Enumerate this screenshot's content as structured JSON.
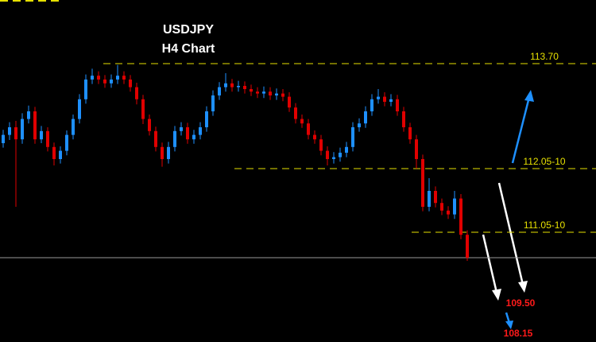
{
  "chart_data": {
    "type": "candlestick",
    "title": "USDJPY",
    "subtitle": "H4 Chart",
    "up_color": "#1e90ff",
    "down_color": "#e00000",
    "level_color": "#e6e000",
    "ylim": [
      109.325,
      114.7
    ],
    "levels": [
      {
        "value": 113.7,
        "label": "113.70"
      },
      {
        "value": 112.05,
        "label": "112.05-10"
      },
      {
        "value": 111.05,
        "label": "111.05-10"
      }
    ],
    "annotations": [
      "109.50",
      "108.15"
    ],
    "ohlc": [
      [
        112.45,
        112.66,
        112.38,
        112.58
      ],
      [
        112.58,
        112.78,
        112.5,
        112.7
      ],
      [
        112.7,
        112.8,
        111.45,
        112.51
      ],
      [
        112.51,
        112.92,
        112.44,
        112.83
      ],
      [
        112.83,
        113.04,
        112.76,
        112.95
      ],
      [
        112.95,
        113.02,
        112.44,
        112.51
      ],
      [
        112.51,
        112.72,
        112.45,
        112.64
      ],
      [
        112.64,
        112.7,
        112.32,
        112.39
      ],
      [
        112.39,
        112.46,
        112.1,
        112.2
      ],
      [
        112.2,
        112.4,
        112.13,
        112.33
      ],
      [
        112.33,
        112.65,
        112.26,
        112.58
      ],
      [
        112.58,
        112.9,
        112.51,
        112.83
      ],
      [
        112.83,
        113.22,
        112.76,
        113.14
      ],
      [
        113.14,
        113.53,
        113.07,
        113.45
      ],
      [
        113.45,
        113.62,
        113.38,
        113.51
      ],
      [
        113.51,
        113.58,
        113.38,
        113.45
      ],
      [
        113.45,
        113.52,
        113.32,
        113.39
      ],
      [
        113.39,
        113.53,
        113.32,
        113.45
      ],
      [
        113.45,
        113.68,
        113.38,
        113.51
      ],
      [
        113.51,
        113.58,
        113.38,
        113.45
      ],
      [
        113.45,
        113.52,
        113.26,
        113.33
      ],
      [
        113.33,
        113.4,
        113.06,
        113.14
      ],
      [
        113.14,
        113.21,
        112.75,
        112.83
      ],
      [
        112.83,
        112.9,
        112.57,
        112.64
      ],
      [
        112.64,
        112.71,
        112.32,
        112.39
      ],
      [
        112.39,
        112.46,
        112.08,
        112.2
      ],
      [
        112.2,
        112.47,
        112.13,
        112.39
      ],
      [
        112.39,
        112.72,
        112.32,
        112.64
      ],
      [
        112.64,
        112.78,
        112.57,
        112.7
      ],
      [
        112.7,
        112.77,
        112.44,
        112.51
      ],
      [
        112.51,
        112.66,
        112.44,
        112.58
      ],
      [
        112.58,
        112.78,
        112.51,
        112.7
      ],
      [
        112.7,
        113.03,
        112.63,
        112.95
      ],
      [
        112.95,
        113.28,
        112.88,
        113.2
      ],
      [
        113.2,
        113.41,
        113.13,
        113.33
      ],
      [
        113.33,
        113.55,
        113.26,
        113.39
      ],
      [
        113.39,
        113.46,
        113.26,
        113.33
      ],
      [
        113.33,
        113.43,
        113.26,
        113.35
      ],
      [
        113.35,
        113.42,
        113.23,
        113.3
      ],
      [
        113.3,
        113.37,
        113.19,
        113.26
      ],
      [
        113.26,
        113.33,
        113.16,
        113.23
      ],
      [
        113.23,
        113.34,
        113.16,
        113.26
      ],
      [
        113.26,
        113.33,
        113.13,
        113.2
      ],
      [
        113.2,
        113.31,
        113.13,
        113.23
      ],
      [
        113.23,
        113.3,
        113.11,
        113.18
      ],
      [
        113.18,
        113.25,
        112.94,
        113.01
      ],
      [
        113.01,
        113.08,
        112.76,
        112.83
      ],
      [
        112.83,
        112.9,
        112.69,
        112.76
      ],
      [
        112.76,
        112.83,
        112.51,
        112.58
      ],
      [
        112.58,
        112.65,
        112.44,
        112.51
      ],
      [
        112.51,
        112.58,
        112.26,
        112.33
      ],
      [
        112.33,
        112.4,
        112.1,
        112.2
      ],
      [
        112.2,
        112.31,
        112.13,
        112.23
      ],
      [
        112.23,
        112.38,
        112.16,
        112.3
      ],
      [
        112.3,
        112.47,
        112.23,
        112.39
      ],
      [
        112.39,
        112.78,
        112.32,
        112.7
      ],
      [
        112.7,
        112.84,
        112.63,
        112.76
      ],
      [
        112.76,
        113.03,
        112.69,
        112.95
      ],
      [
        112.95,
        113.22,
        112.88,
        113.14
      ],
      [
        113.14,
        113.3,
        113.07,
        113.18
      ],
      [
        113.18,
        113.25,
        113.03,
        113.1
      ],
      [
        113.1,
        113.22,
        113.03,
        113.14
      ],
      [
        113.14,
        113.21,
        112.88,
        112.95
      ],
      [
        112.95,
        113.02,
        112.63,
        112.7
      ],
      [
        112.7,
        112.77,
        112.44,
        112.51
      ],
      [
        112.51,
        112.58,
        112.05,
        112.2
      ],
      [
        112.2,
        112.27,
        111.38,
        111.45
      ],
      [
        111.45,
        111.9,
        111.38,
        111.7
      ],
      [
        111.7,
        111.77,
        111.44,
        111.51
      ],
      [
        111.51,
        111.58,
        111.32,
        111.39
      ],
      [
        111.39,
        111.46,
        111.26,
        111.33
      ],
      [
        111.33,
        111.7,
        111.26,
        111.58
      ],
      [
        111.58,
        111.65,
        110.94,
        111.01
      ],
      [
        111.01,
        111.08,
        110.6,
        110.65
      ]
    ]
  }
}
